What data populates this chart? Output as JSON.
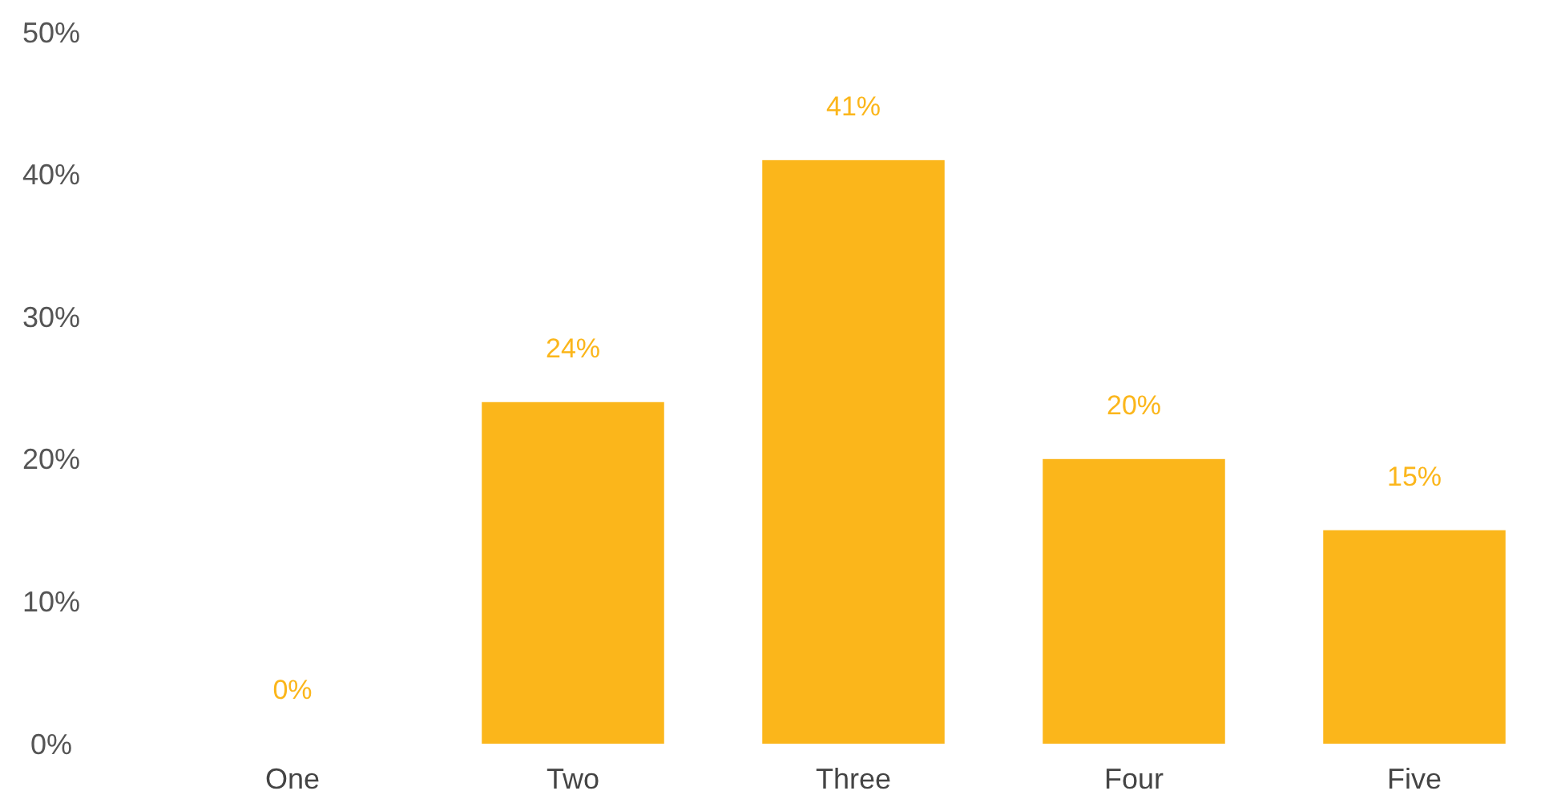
{
  "chart_data": {
    "type": "bar",
    "categories": [
      "One",
      "Two",
      "Three",
      "Four",
      "Five"
    ],
    "values": [
      0,
      24,
      41,
      20,
      15
    ],
    "value_labels": [
      "0%",
      "24%",
      "41%",
      "20%",
      "15%"
    ],
    "color": "#fbb61b",
    "ylim": [
      0,
      50
    ],
    "yticks": [
      {
        "value": 0,
        "label": "0%"
      },
      {
        "value": 10,
        "label": "10%"
      },
      {
        "value": 20,
        "label": "20%"
      },
      {
        "value": 30,
        "label": "30%"
      },
      {
        "value": 40,
        "label": "40%"
      },
      {
        "value": 50,
        "label": "50%"
      }
    ],
    "grid": false
  }
}
